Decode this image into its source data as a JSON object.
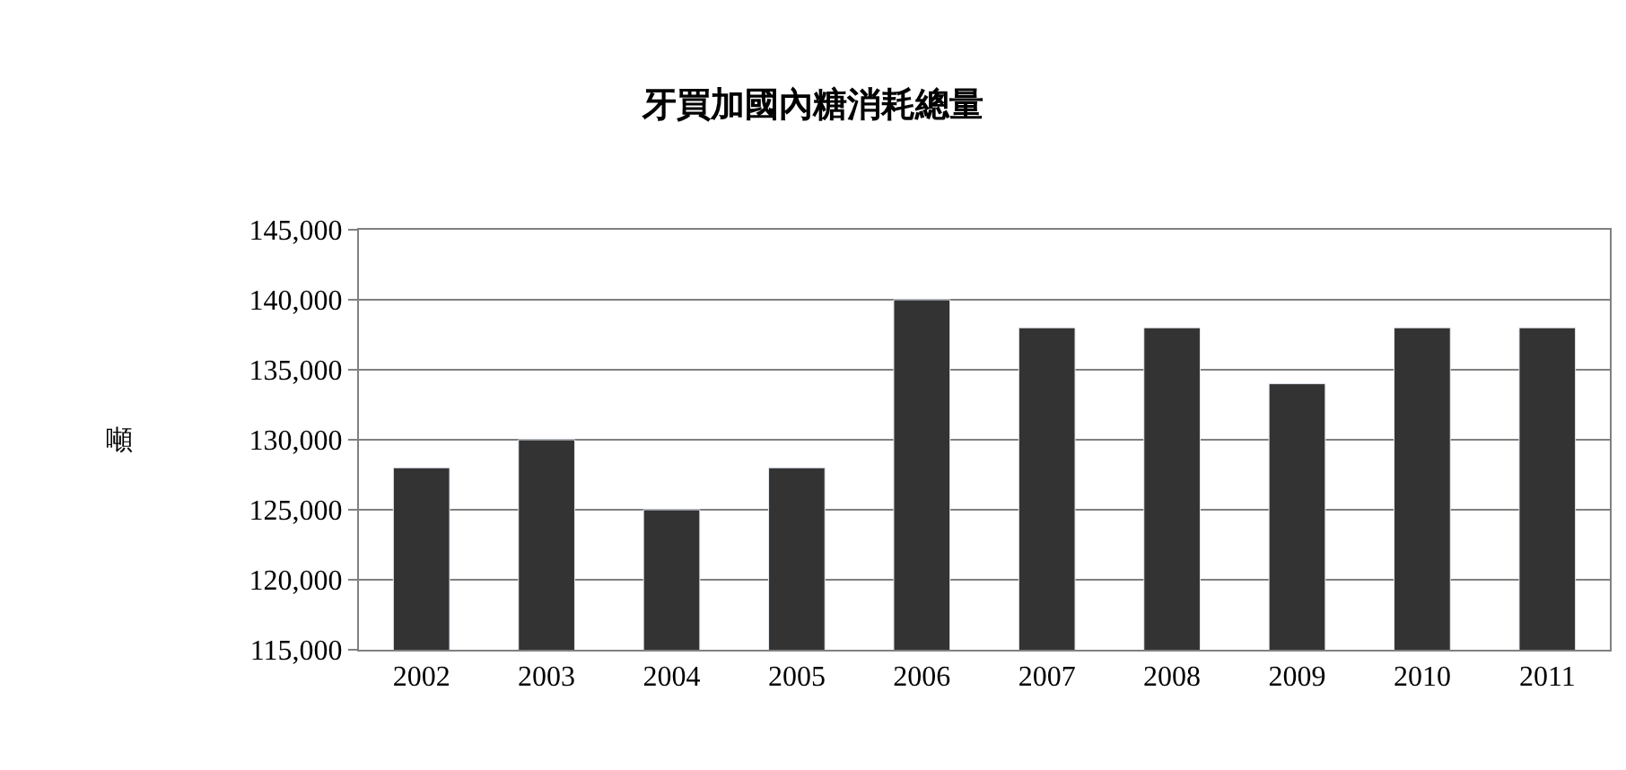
{
  "chart_data": {
    "type": "bar",
    "title": "牙買加國內糖消耗總量",
    "ylabel": "噸",
    "categories": [
      "2002",
      "2003",
      "2004",
      "2005",
      "2006",
      "2007",
      "2008",
      "2009",
      "2010",
      "2011"
    ],
    "values": [
      128000,
      130000,
      125000,
      128000,
      140000,
      138000,
      138000,
      134000,
      138000,
      138000
    ],
    "color": "#333333",
    "ylim": [
      115000,
      145000
    ],
    "yticks": [
      {
        "value": 115000,
        "label": "115,000"
      },
      {
        "value": 120000,
        "label": "120,000"
      },
      {
        "value": 125000,
        "label": "125,000"
      },
      {
        "value": 130000,
        "label": "130,000"
      },
      {
        "value": 135000,
        "label": "135,000"
      },
      {
        "value": 140000,
        "label": "140,000"
      },
      {
        "value": 145000,
        "label": "145,000"
      }
    ],
    "grid": "y"
  }
}
